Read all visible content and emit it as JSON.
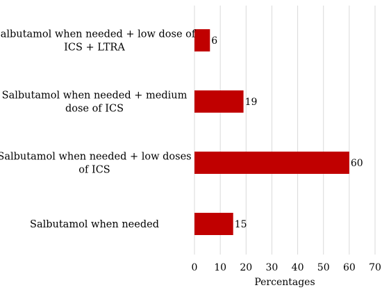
{
  "chart_data": {
    "type": "bar",
    "orientation": "horizontal",
    "categories": [
      [
        "Salbutamol when needed + low dose of",
        "ICS + LTRA"
      ],
      [
        "Salbutamol when needed + medium",
        "dose of ICS"
      ],
      [
        "Salbutamol when needed + low doses",
        "of ICS"
      ],
      [
        "Salbutamol when needed"
      ]
    ],
    "values": [
      6,
      19,
      60,
      15
    ],
    "data_labels": [
      "6",
      "19",
      "60",
      "15"
    ],
    "xlabel": "Percentages",
    "ylabel": "",
    "xlim": [
      0,
      70
    ],
    "x_ticks": [
      0,
      10,
      20,
      30,
      40,
      50,
      60,
      70
    ],
    "x_tick_labels": [
      "0",
      "10",
      "20",
      "30",
      "40",
      "50",
      "60",
      "70"
    ],
    "grid": "vertical",
    "legend": "none",
    "bar_color": "#c00000"
  }
}
